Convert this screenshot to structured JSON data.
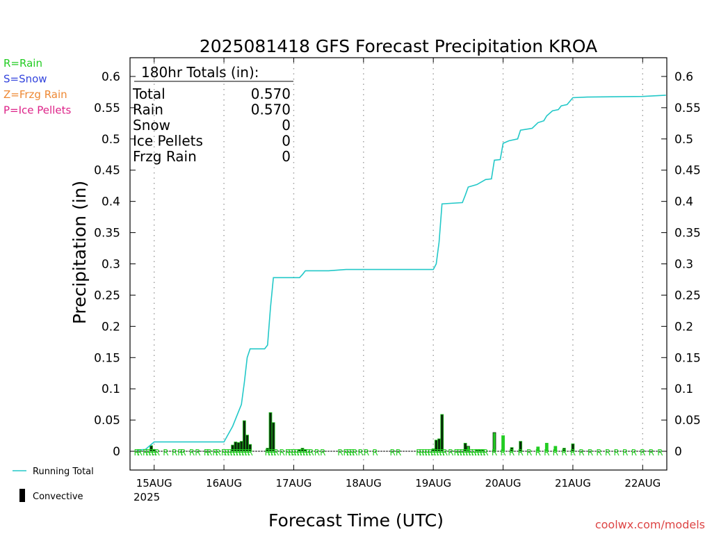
{
  "chart_data": {
    "type": "line",
    "title": "2025081418 GFS Forecast Precipitation KROA",
    "ylabel": "Precipitation (in)",
    "xlabel": "Forecast Time (UTC)",
    "ylim": [
      -0.03,
      0.63
    ],
    "yticks": [
      "0",
      "0.05",
      "0.1",
      "0.15",
      "0.2",
      "0.25",
      "0.3",
      "0.35",
      "0.4",
      "0.45",
      "0.5",
      "0.55",
      "0.6"
    ],
    "xlim_hours": [
      -2.3,
      182.3
    ],
    "xticks": [
      {
        "hour": 6,
        "label": "15AUG"
      },
      {
        "hour": 30,
        "label": "16AUG"
      },
      {
        "hour": 54,
        "label": "17AUG"
      },
      {
        "hour": 78,
        "label": "18AUG"
      },
      {
        "hour": 102,
        "label": "19AUG"
      },
      {
        "hour": 126,
        "label": "20AUG"
      },
      {
        "hour": 150,
        "label": "21AUG"
      },
      {
        "hour": 174,
        "label": "22AUG"
      }
    ],
    "year_label": "2025",
    "grid": "vertical dotted at day boundaries",
    "precip_type_legend": [
      {
        "label": "R=Rain",
        "color": "#22cc22"
      },
      {
        "label": "S=Snow",
        "color": "#3344dd"
      },
      {
        "label": "Z=Frzg Rain",
        "color": "#ee8833"
      },
      {
        "label": "P=Ice Pellets",
        "color": "#dd2288"
      }
    ],
    "series_legend": [
      {
        "label": "Running Total",
        "color": "#22c8c8"
      },
      {
        "label": "Convective",
        "color": "#000000"
      }
    ],
    "totals": {
      "header": "180hr Totals (in):",
      "rows": [
        {
          "label": "Total",
          "value": "0.570"
        },
        {
          "label": "Rain",
          "value": "0.570"
        },
        {
          "label": "Snow",
          "value": "0"
        },
        {
          "label": "Ice Pellets",
          "value": "0"
        },
        {
          "label": "Frzg Rain",
          "value": "0"
        }
      ]
    },
    "running_total": [
      [
        0,
        0.002
      ],
      [
        3,
        0.003
      ],
      [
        6,
        0.015
      ],
      [
        30,
        0.015
      ],
      [
        33,
        0.04
      ],
      [
        36,
        0.075
      ],
      [
        37,
        0.11
      ],
      [
        38,
        0.15
      ],
      [
        39,
        0.164
      ],
      [
        44,
        0.164
      ],
      [
        45,
        0.17
      ],
      [
        46,
        0.23
      ],
      [
        47,
        0.278
      ],
      [
        56,
        0.278
      ],
      [
        57,
        0.283
      ],
      [
        58,
        0.289
      ],
      [
        66,
        0.289
      ],
      [
        72,
        0.291
      ],
      [
        102,
        0.291
      ],
      [
        103,
        0.3
      ],
      [
        104,
        0.335
      ],
      [
        105,
        0.396
      ],
      [
        112,
        0.398
      ],
      [
        113,
        0.41
      ],
      [
        114,
        0.423
      ],
      [
        117,
        0.427
      ],
      [
        120,
        0.435
      ],
      [
        122,
        0.436
      ],
      [
        123,
        0.466
      ],
      [
        125,
        0.467
      ],
      [
        126,
        0.493
      ],
      [
        128,
        0.497
      ],
      [
        131,
        0.5
      ],
      [
        132,
        0.514
      ],
      [
        136,
        0.517
      ],
      [
        138,
        0.526
      ],
      [
        140,
        0.529
      ],
      [
        141,
        0.537
      ],
      [
        143,
        0.545
      ],
      [
        145,
        0.547
      ],
      [
        146,
        0.553
      ],
      [
        148,
        0.555
      ],
      [
        150,
        0.566
      ],
      [
        155,
        0.567
      ],
      [
        174,
        0.568
      ],
      [
        178,
        0.569
      ],
      [
        182,
        0.57
      ]
    ],
    "bars": [
      {
        "hour": 5,
        "value": 0.009,
        "kind": "convective"
      },
      {
        "hour": 6,
        "value": 0.003,
        "kind": "convective"
      },
      {
        "hour": 33,
        "value": 0.01,
        "kind": "convective"
      },
      {
        "hour": 34,
        "value": 0.015,
        "kind": "convective"
      },
      {
        "hour": 35,
        "value": 0.014,
        "kind": "convective"
      },
      {
        "hour": 36,
        "value": 0.016,
        "kind": "convective"
      },
      {
        "hour": 37,
        "value": 0.049,
        "kind": "convective"
      },
      {
        "hour": 38,
        "value": 0.026,
        "kind": "convective"
      },
      {
        "hour": 39,
        "value": 0.011,
        "kind": "convective"
      },
      {
        "hour": 45,
        "value": 0.005,
        "kind": "convective"
      },
      {
        "hour": 46,
        "value": 0.062,
        "kind": "convective"
      },
      {
        "hour": 47,
        "value": 0.046,
        "kind": "convective"
      },
      {
        "hour": 56,
        "value": 0.003,
        "kind": "convective"
      },
      {
        "hour": 57,
        "value": 0.005,
        "kind": "convective"
      },
      {
        "hour": 58,
        "value": 0.003,
        "kind": "convective"
      },
      {
        "hour": 102,
        "value": 0.004,
        "kind": "convective"
      },
      {
        "hour": 103,
        "value": 0.018,
        "kind": "convective"
      },
      {
        "hour": 104,
        "value": 0.02,
        "kind": "convective"
      },
      {
        "hour": 105,
        "value": 0.059,
        "kind": "convective"
      },
      {
        "hour": 113,
        "value": 0.013,
        "kind": "convective"
      },
      {
        "hour": 114,
        "value": 0.008,
        "kind": "mixed"
      },
      {
        "hour": 117,
        "value": 0.002,
        "kind": "convective"
      },
      {
        "hour": 118,
        "value": 0.002,
        "kind": "convective"
      },
      {
        "hour": 119,
        "value": 0.002,
        "kind": "convective"
      },
      {
        "hour": 123,
        "value": 0.03,
        "kind": "mixed"
      },
      {
        "hour": 126,
        "value": 0.025,
        "kind": "stratiform"
      },
      {
        "hour": 129,
        "value": 0.006,
        "kind": "convective"
      },
      {
        "hour": 132,
        "value": 0.016,
        "kind": "convective"
      },
      {
        "hour": 138,
        "value": 0.007,
        "kind": "stratiform"
      },
      {
        "hour": 141,
        "value": 0.013,
        "kind": "stratiform"
      },
      {
        "hour": 144,
        "value": 0.008,
        "kind": "stratiform"
      },
      {
        "hour": 147,
        "value": 0.005,
        "kind": "convective"
      },
      {
        "hour": 150,
        "value": 0.012,
        "kind": "convective"
      }
    ],
    "rain_marker_hours": [
      0,
      1,
      3,
      4,
      5,
      6,
      7,
      10,
      13,
      15,
      16,
      19,
      21,
      24,
      25,
      27,
      28,
      30,
      31,
      32,
      33,
      34,
      35,
      36,
      37,
      38,
      39,
      45,
      46,
      47,
      48,
      50,
      52,
      53,
      54,
      55,
      56,
      57,
      58,
      59,
      60,
      62,
      64,
      70,
      72,
      73,
      74,
      75,
      77,
      79,
      82,
      88,
      90,
      97,
      98,
      99,
      100,
      101,
      102,
      103,
      104,
      105,
      106,
      108,
      110,
      111,
      112,
      113,
      114,
      115,
      116,
      117,
      118,
      119,
      120,
      123,
      126,
      129,
      132,
      135,
      138,
      141,
      144,
      147,
      150,
      153,
      156,
      159,
      162,
      165,
      168,
      171,
      174,
      177,
      180
    ],
    "rain_marker": "R"
  },
  "footer": {
    "credit": "coolwx.com/models"
  }
}
